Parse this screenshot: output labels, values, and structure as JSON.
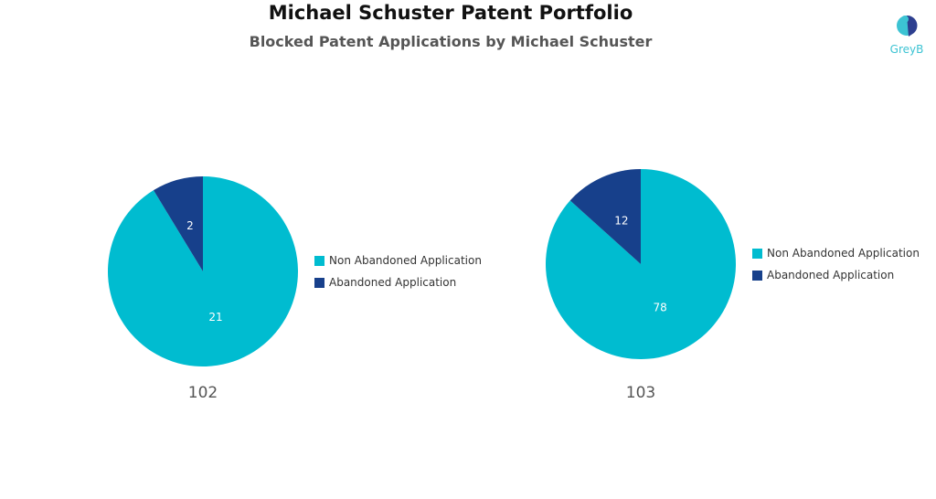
{
  "chart_data": [
    {
      "type": "pie",
      "category": "102",
      "slices": [
        {
          "label": "Non Abandoned Application",
          "value": 21,
          "color": "#00BCD0"
        },
        {
          "label": "Abandoned Application",
          "value": 2,
          "color": "#17408B"
        }
      ]
    },
    {
      "type": "pie",
      "category": "103",
      "slices": [
        {
          "label": "Non Abandoned Application",
          "value": 78,
          "color": "#00BCD0"
        },
        {
          "label": "Abandoned Application",
          "value": 12,
          "color": "#17408B"
        }
      ]
    }
  ],
  "title": "Michael Schuster Patent Portfolio",
  "subtitle": "Blocked Patent Applications by Michael Schuster",
  "logo": {
    "text": "GreyB"
  }
}
